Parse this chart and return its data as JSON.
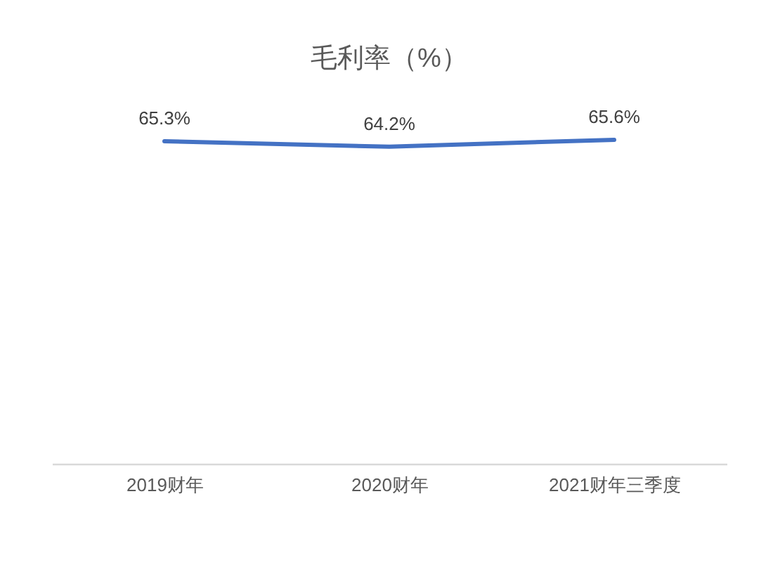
{
  "chart_data": {
    "type": "line",
    "title": "毛利率（%）",
    "categories": [
      "2019财年",
      "2020财年",
      "2021财年三季度"
    ],
    "values": [
      65.3,
      64.2,
      65.6
    ],
    "color": "#4472c4",
    "value_labels": [
      "65.3%",
      "64.2%",
      "65.6%"
    ],
    "tick_labels": "x",
    "line_style": "solid"
  }
}
